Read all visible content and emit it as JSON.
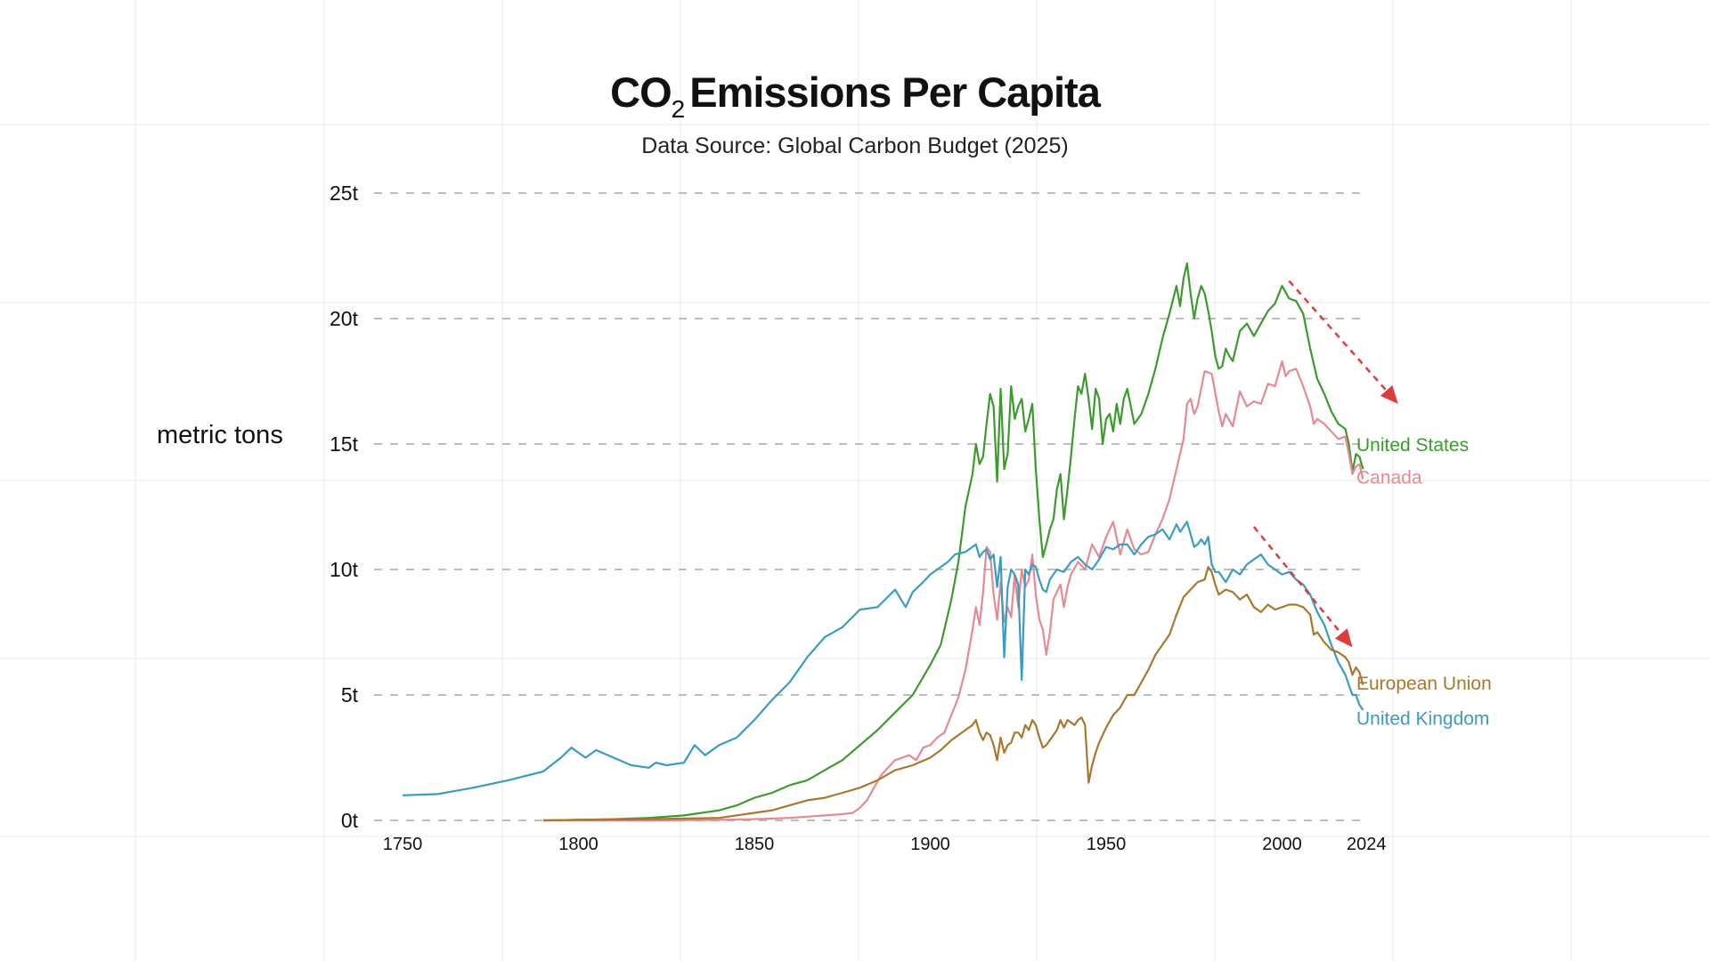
{
  "chart_data": {
    "type": "line",
    "title_main": "CO",
    "title_sub": "2",
    "title_rest": "Emissions Per Capita",
    "title": "CO2 Emissions Per Capita",
    "subtitle": "Data Source: Global Carbon Budget (2025)",
    "xlabel": "",
    "ylabel": "metric tons",
    "xlim": [
      1740,
      2030
    ],
    "ylim": [
      0,
      25
    ],
    "xticks": [
      {
        "value": 1750,
        "label": "1750"
      },
      {
        "value": 1800,
        "label": "1800"
      },
      {
        "value": 1850,
        "label": "1850"
      },
      {
        "value": 1900,
        "label": "1900"
      },
      {
        "value": 1950,
        "label": "1950"
      },
      {
        "value": 2000,
        "label": "2000"
      },
      {
        "value": 2024,
        "label": "2024"
      }
    ],
    "yticks": [
      {
        "value": 0,
        "label": "0t"
      },
      {
        "value": 5,
        "label": "5t"
      },
      {
        "value": 10,
        "label": "10t"
      },
      {
        "value": 15,
        "label": "15t"
      },
      {
        "value": 20,
        "label": "20t"
      },
      {
        "value": 25,
        "label": "25t"
      }
    ],
    "grid": "horizontal-dashed",
    "series": [
      {
        "name": "United States",
        "color": "#3d9a2e",
        "x": [
          1790,
          1800,
          1810,
          1820,
          1830,
          1840,
          1845,
          1850,
          1855,
          1860,
          1865,
          1870,
          1875,
          1880,
          1885,
          1890,
          1895,
          1900,
          1903,
          1906,
          1908,
          1910,
          1912,
          1913,
          1914,
          1915,
          1916,
          1917,
          1918,
          1919,
          1920,
          1921,
          1922,
          1923,
          1924,
          1925,
          1926,
          1927,
          1928,
          1929,
          1930,
          1931,
          1932,
          1933,
          1934,
          1935,
          1936,
          1937,
          1938,
          1939,
          1940,
          1941,
          1942,
          1943,
          1944,
          1945,
          1946,
          1947,
          1948,
          1949,
          1950,
          1951,
          1952,
          1953,
          1954,
          1955,
          1956,
          1957,
          1958,
          1960,
          1962,
          1964,
          1966,
          1968,
          1970,
          1971,
          1972,
          1973,
          1974,
          1975,
          1976,
          1977,
          1978,
          1979,
          1980,
          1981,
          1982,
          1983,
          1984,
          1985,
          1986,
          1988,
          1990,
          1992,
          1994,
          1996,
          1998,
          2000,
          2002,
          2004,
          2006,
          2008,
          2010,
          2012,
          2014,
          2016,
          2018,
          2019,
          2020,
          2021,
          2022,
          2023
        ],
        "y": [
          0.0,
          0.02,
          0.05,
          0.1,
          0.2,
          0.4,
          0.6,
          0.9,
          1.1,
          1.4,
          1.6,
          2.0,
          2.4,
          3.0,
          3.6,
          4.3,
          5.0,
          6.2,
          7.0,
          8.8,
          10.3,
          12.5,
          13.8,
          15.0,
          14.2,
          14.5,
          15.8,
          17.0,
          16.5,
          13.5,
          17.2,
          14.0,
          14.6,
          17.3,
          16.0,
          16.5,
          16.8,
          15.5,
          16.0,
          16.6,
          14.0,
          12.0,
          10.5,
          11.0,
          11.6,
          12.0,
          13.2,
          13.8,
          12.0,
          13.2,
          14.5,
          16.0,
          17.3,
          17.0,
          17.8,
          16.8,
          15.6,
          17.2,
          16.8,
          15.0,
          16.0,
          16.2,
          15.5,
          16.6,
          15.8,
          16.8,
          17.2,
          16.5,
          15.8,
          16.2,
          17.0,
          18.0,
          19.2,
          20.2,
          21.3,
          20.5,
          21.6,
          22.2,
          21.0,
          20.0,
          20.8,
          21.3,
          21.0,
          20.3,
          19.5,
          18.5,
          18.0,
          18.1,
          18.8,
          18.5,
          18.3,
          19.5,
          19.8,
          19.3,
          19.8,
          20.3,
          20.6,
          21.3,
          20.8,
          20.7,
          20.2,
          18.8,
          17.6,
          17.0,
          16.3,
          15.8,
          15.6,
          15.0,
          13.9,
          14.6,
          14.5,
          14.0
        ]
      },
      {
        "name": "Canada",
        "color": "#e58a95",
        "x": [
          1790,
          1800,
          1820,
          1840,
          1850,
          1860,
          1865,
          1870,
          1875,
          1878,
          1880,
          1882,
          1884,
          1886,
          1888,
          1890,
          1892,
          1894,
          1896,
          1898,
          1900,
          1902,
          1904,
          1906,
          1908,
          1910,
          1911,
          1912,
          1913,
          1914,
          1915,
          1916,
          1917,
          1918,
          1919,
          1920,
          1921,
          1922,
          1923,
          1924,
          1925,
          1926,
          1927,
          1928,
          1929,
          1930,
          1931,
          1932,
          1933,
          1934,
          1935,
          1936,
          1937,
          1938,
          1939,
          1940,
          1942,
          1944,
          1946,
          1948,
          1950,
          1952,
          1954,
          1956,
          1958,
          1960,
          1962,
          1964,
          1966,
          1968,
          1970,
          1972,
          1973,
          1974,
          1975,
          1976,
          1978,
          1980,
          1982,
          1983,
          1984,
          1986,
          1988,
          1990,
          1992,
          1994,
          1996,
          1998,
          2000,
          2001,
          2002,
          2004,
          2006,
          2008,
          2009,
          2010,
          2012,
          2014,
          2016,
          2018,
          2019,
          2020,
          2021,
          2022,
          2023
        ],
        "y": [
          0.0,
          0.0,
          0.0,
          0.02,
          0.05,
          0.1,
          0.15,
          0.2,
          0.25,
          0.3,
          0.5,
          0.8,
          1.3,
          1.8,
          2.1,
          2.4,
          2.5,
          2.6,
          2.4,
          2.9,
          3.0,
          3.3,
          3.5,
          4.2,
          4.9,
          6.0,
          6.8,
          7.6,
          8.5,
          7.8,
          9.1,
          10.9,
          10.7,
          9.0,
          8.0,
          9.5,
          7.9,
          8.5,
          8.1,
          9.8,
          8.5,
          10.0,
          9.3,
          9.6,
          10.6,
          9.0,
          8.0,
          7.6,
          6.6,
          7.5,
          8.8,
          9.1,
          9.4,
          8.5,
          9.3,
          9.8,
          10.3,
          10.0,
          11.0,
          10.5,
          11.3,
          11.9,
          10.6,
          11.6,
          10.8,
          10.6,
          10.7,
          11.4,
          12.0,
          12.8,
          14.0,
          15.2,
          16.6,
          16.8,
          16.2,
          16.5,
          17.9,
          17.8,
          16.3,
          15.7,
          16.2,
          15.7,
          17.1,
          16.5,
          16.7,
          16.6,
          17.4,
          17.3,
          18.3,
          17.7,
          17.9,
          18.0,
          17.3,
          16.5,
          15.8,
          16.0,
          15.8,
          15.5,
          15.2,
          15.3,
          14.6,
          13.8,
          14.1,
          14.2,
          13.6
        ]
      },
      {
        "name": "United Kingdom",
        "color": "#3a9cc0",
        "x": [
          1750,
          1760,
          1770,
          1780,
          1790,
          1795,
          1798,
          1800,
          1802,
          1805,
          1810,
          1815,
          1820,
          1822,
          1825,
          1830,
          1833,
          1836,
          1840,
          1845,
          1850,
          1855,
          1860,
          1865,
          1870,
          1875,
          1880,
          1885,
          1890,
          1893,
          1895,
          1898,
          1900,
          1902,
          1905,
          1907,
          1910,
          1912,
          1913,
          1914,
          1915,
          1916,
          1917,
          1918,
          1919,
          1920,
          1921,
          1922,
          1923,
          1924,
          1925,
          1926,
          1927,
          1928,
          1929,
          1930,
          1931,
          1932,
          1933,
          1934,
          1936,
          1938,
          1940,
          1942,
          1944,
          1946,
          1948,
          1950,
          1952,
          1954,
          1956,
          1958,
          1960,
          1962,
          1964,
          1966,
          1968,
          1970,
          1971,
          1972,
          1973,
          1974,
          1975,
          1976,
          1977,
          1978,
          1979,
          1980,
          1981,
          1982,
          1984,
          1986,
          1988,
          1990,
          1992,
          1994,
          1996,
          1998,
          2000,
          2002,
          2004,
          2006,
          2008,
          2010,
          2012,
          2014,
          2016,
          2018,
          2019,
          2020,
          2021,
          2022,
          2023
        ],
        "y": [
          1.0,
          1.05,
          1.3,
          1.6,
          1.95,
          2.5,
          2.9,
          2.7,
          2.5,
          2.8,
          2.5,
          2.2,
          2.1,
          2.3,
          2.2,
          2.3,
          3.0,
          2.6,
          3.0,
          3.3,
          4.0,
          4.8,
          5.5,
          6.5,
          7.3,
          7.7,
          8.4,
          8.5,
          9.2,
          8.5,
          9.1,
          9.5,
          9.8,
          10.0,
          10.3,
          10.6,
          10.7,
          10.9,
          11.0,
          10.5,
          10.7,
          10.8,
          10.4,
          10.6,
          9.3,
          10.5,
          6.5,
          9.3,
          10.0,
          9.8,
          9.4,
          5.6,
          10.0,
          9.8,
          10.2,
          10.1,
          9.6,
          9.2,
          9.1,
          9.6,
          10.0,
          9.9,
          10.3,
          10.5,
          10.2,
          10.0,
          10.4,
          10.9,
          10.8,
          11.0,
          11.0,
          10.6,
          11.0,
          11.3,
          11.4,
          11.6,
          11.2,
          11.8,
          11.5,
          11.7,
          11.9,
          11.4,
          10.9,
          11.0,
          11.2,
          11.0,
          11.3,
          10.2,
          9.9,
          9.9,
          9.5,
          10.0,
          9.8,
          10.2,
          10.4,
          10.6,
          10.2,
          10.0,
          9.8,
          9.9,
          9.6,
          9.4,
          9.0,
          8.3,
          7.8,
          7.0,
          6.3,
          5.8,
          5.4,
          5.0,
          5.0,
          4.6,
          4.4
        ]
      },
      {
        "name": "European Union",
        "color": "#a8782e",
        "x": [
          1790,
          1800,
          1820,
          1840,
          1850,
          1855,
          1860,
          1865,
          1870,
          1875,
          1880,
          1885,
          1890,
          1895,
          1900,
          1903,
          1906,
          1910,
          1912,
          1913,
          1914,
          1915,
          1916,
          1917,
          1918,
          1919,
          1920,
          1921,
          1922,
          1923,
          1924,
          1925,
          1926,
          1927,
          1928,
          1929,
          1930,
          1931,
          1932,
          1933,
          1934,
          1935,
          1936,
          1937,
          1938,
          1939,
          1940,
          1941,
          1942,
          1943,
          1944,
          1945,
          1946,
          1947,
          1948,
          1950,
          1952,
          1954,
          1956,
          1958,
          1960,
          1962,
          1964,
          1966,
          1968,
          1970,
          1972,
          1974,
          1976,
          1978,
          1979,
          1980,
          1981,
          1982,
          1984,
          1986,
          1988,
          1990,
          1992,
          1994,
          1996,
          1998,
          2000,
          2002,
          2004,
          2006,
          2008,
          2009,
          2010,
          2012,
          2014,
          2016,
          2018,
          2019,
          2020,
          2021,
          2022,
          2023
        ],
        "y": [
          0.0,
          0.02,
          0.05,
          0.1,
          0.3,
          0.4,
          0.6,
          0.8,
          0.9,
          1.1,
          1.3,
          1.6,
          2.0,
          2.2,
          2.5,
          2.8,
          3.2,
          3.6,
          3.8,
          4.0,
          3.5,
          3.2,
          3.5,
          3.4,
          3.0,
          2.4,
          3.3,
          2.7,
          3.0,
          3.1,
          3.5,
          3.5,
          3.3,
          3.8,
          3.6,
          4.0,
          3.8,
          3.3,
          2.9,
          3.0,
          3.2,
          3.4,
          3.6,
          4.0,
          3.7,
          4.0,
          3.9,
          3.8,
          4.0,
          4.1,
          3.8,
          1.5,
          2.2,
          2.7,
          3.1,
          3.7,
          4.2,
          4.5,
          5.0,
          5.0,
          5.5,
          6.0,
          6.6,
          7.0,
          7.4,
          8.2,
          8.9,
          9.2,
          9.5,
          9.6,
          10.1,
          9.9,
          9.4,
          9.0,
          9.2,
          9.1,
          8.8,
          9.0,
          8.5,
          8.3,
          8.6,
          8.4,
          8.5,
          8.6,
          8.6,
          8.5,
          8.2,
          7.4,
          7.5,
          7.1,
          6.8,
          6.7,
          6.5,
          6.3,
          5.8,
          6.1,
          5.9,
          5.4
        ]
      }
    ],
    "arrows": [
      {
        "from": [
          2002,
          21.5
        ],
        "to": [
          2033,
          16.6
        ],
        "color": "#e03c3c"
      },
      {
        "from": [
          1992,
          11.7
        ],
        "to": [
          2020,
          6.9
        ],
        "color": "#e03c3c"
      }
    ]
  }
}
